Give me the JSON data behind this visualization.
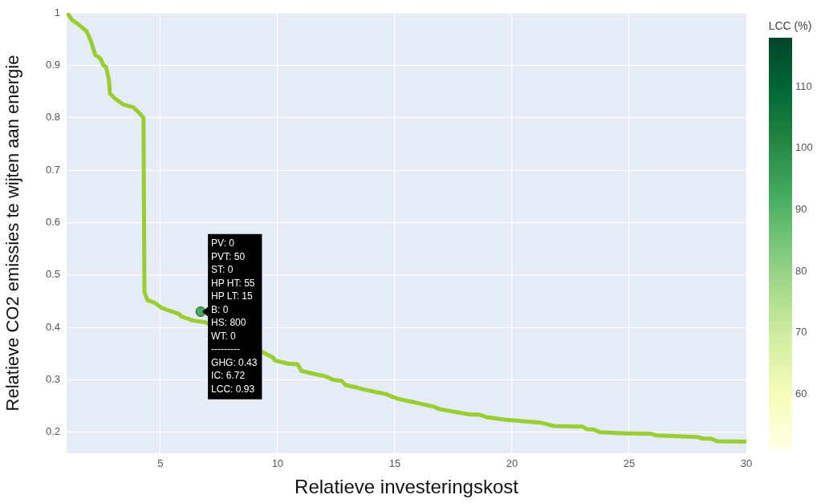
{
  "chart_data": {
    "type": "line",
    "xlabel": "Relatieve investeringskost",
    "ylabel": "Relatieve CO2 emissies te wijten aan energie",
    "clabel": "LCC (%)",
    "xlim": [
      1,
      30
    ],
    "xticks": [
      5,
      10,
      15,
      20,
      25,
      30
    ],
    "ylim": [
      0.16,
      1
    ],
    "yticks": [
      0.2,
      0.3,
      0.4,
      0.5,
      0.6,
      0.7,
      0.8,
      0.9,
      1
    ],
    "clim": [
      51,
      118
    ],
    "cticks": [
      60,
      70,
      80,
      90,
      100,
      110
    ],
    "grid": true,
    "legend": false,
    "series": [
      {
        "color": "#9acd32",
        "x": [
          1.03,
          1.24,
          1.44,
          1.72,
          1.85,
          2.03,
          2.23,
          2.44,
          2.57,
          2.68,
          2.81,
          2.85,
          3.05,
          3.26,
          3.43,
          3.84,
          4.08,
          4.28,
          4.32,
          4.45,
          4.76,
          5.03,
          5.38,
          5.79,
          5.89,
          6.4,
          6.91,
          9.82,
          9.89,
          10.44,
          10.85,
          11.02,
          11.7,
          12.04,
          12.38,
          12.73,
          12.9,
          13.41,
          13.75,
          14.27,
          14.61,
          14.95,
          15.12,
          15.63,
          16.66,
          16.93,
          17.68,
          18.2,
          18.57,
          18.91,
          19.74,
          20.76,
          21.27,
          21.6,
          21.8,
          22.8,
          23.0,
          23.2,
          23.5,
          23.77,
          24.86,
          25.96,
          26.16,
          27.94,
          28.11,
          28.49,
          28.76,
          30
        ],
        "values": [
          1.0,
          0.986,
          0.98,
          0.97,
          0.965,
          0.947,
          0.919,
          0.913,
          0.9,
          0.897,
          0.871,
          0.846,
          0.837,
          0.83,
          0.825,
          0.82,
          0.81,
          0.8,
          0.467,
          0.452,
          0.447,
          0.438,
          0.432,
          0.426,
          0.421,
          0.413,
          0.41,
          0.342,
          0.337,
          0.331,
          0.33,
          0.317,
          0.31,
          0.307,
          0.3,
          0.298,
          0.29,
          0.285,
          0.281,
          0.276,
          0.273,
          0.267,
          0.264,
          0.259,
          0.249,
          0.244,
          0.238,
          0.234,
          0.234,
          0.229,
          0.224,
          0.22,
          0.218,
          0.214,
          0.212,
          0.211,
          0.211,
          0.206,
          0.205,
          0.2,
          0.198,
          0.197,
          0.194,
          0.191,
          0.188,
          0.188,
          0.183,
          0.182
        ]
      },
      {
        "type": "scatter",
        "marker": "circle",
        "x": [
          6.72
        ],
        "values": [
          0.43
        ],
        "cvalues": [
          93
        ]
      }
    ],
    "annotations": [
      "PV: 0",
      "PVT: 50",
      "ST: 0",
      "HP HT: 55",
      "HP LT: 15",
      "B: 0",
      "HS: 800",
      "WT: 0",
      "---------",
      "GHG: 0.43",
      "IC: 6.72",
      "LCC: 0.93"
    ]
  }
}
